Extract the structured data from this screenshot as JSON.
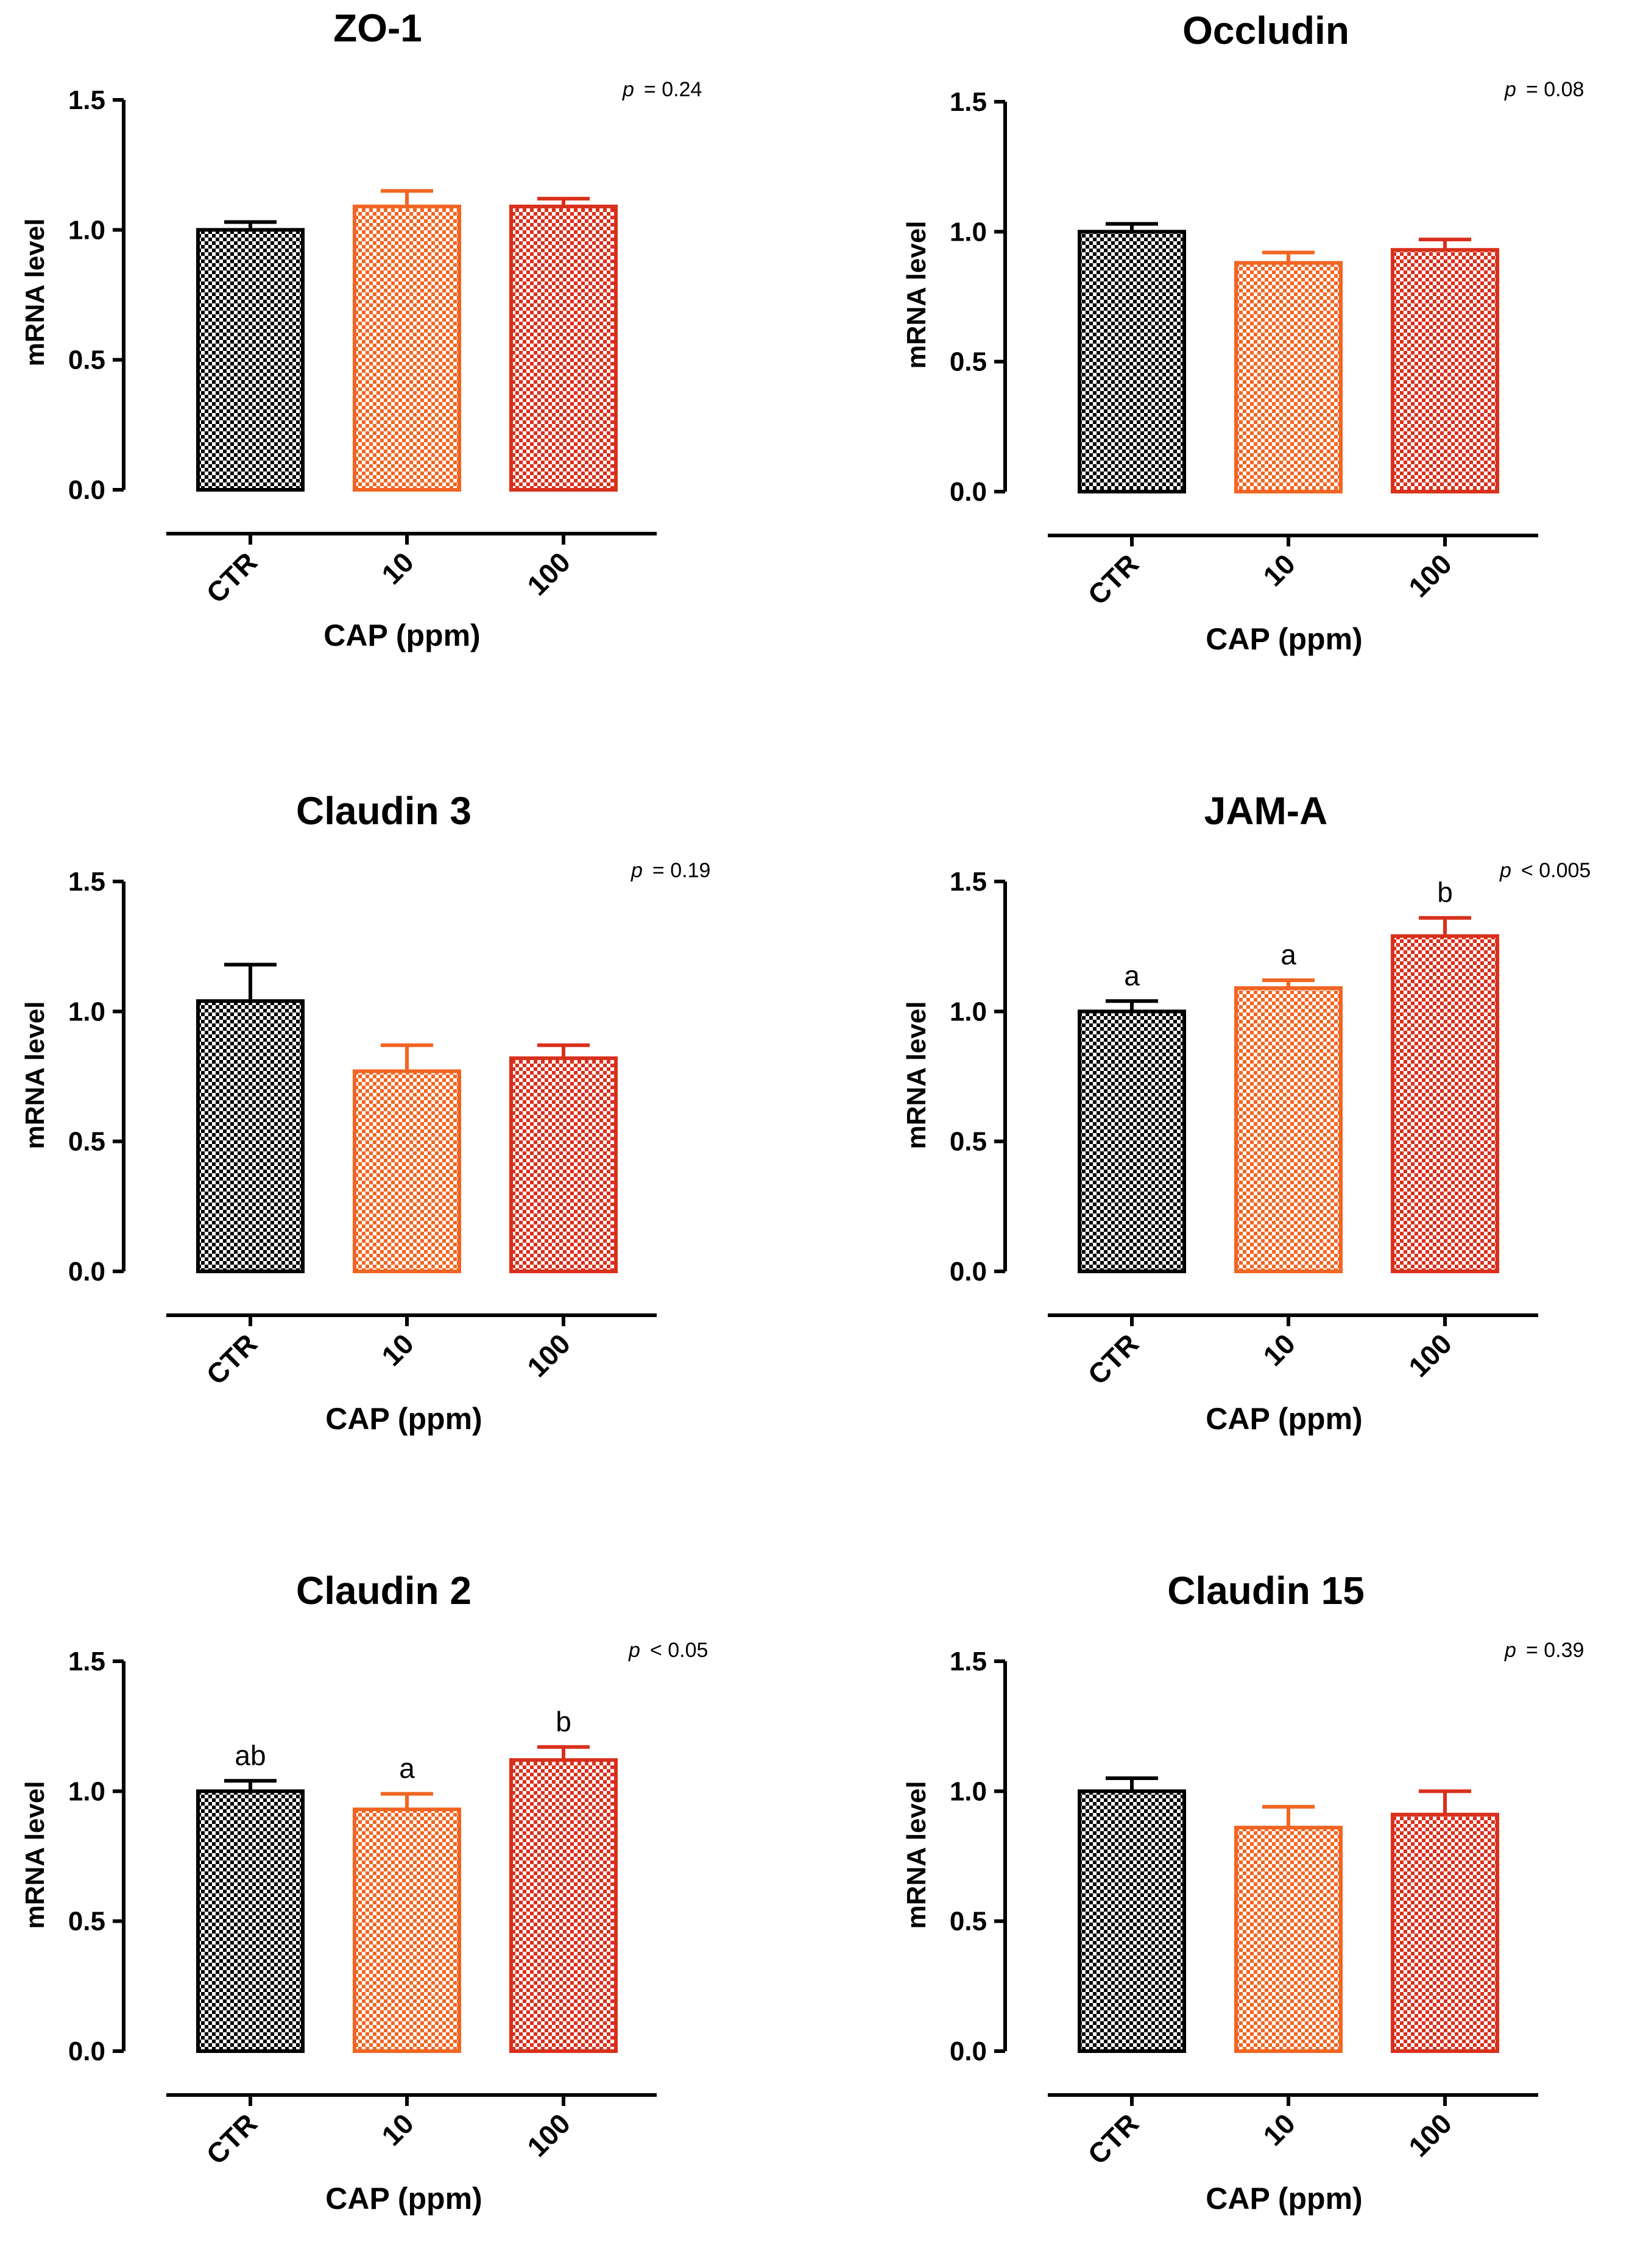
{
  "series_colors": [
    "#000000",
    "#f26522",
    "#d9301c"
  ],
  "chart_data": [
    {
      "type": "bar",
      "title": "ZO-1",
      "categories": [
        "CTR",
        "10",
        "100"
      ],
      "values": [
        1.0,
        1.09,
        1.09
      ],
      "errors": [
        0.03,
        0.06,
        0.03
      ],
      "ylabel": "mRNA level",
      "xlabel": "CAP (ppm)",
      "ylim": [
        0,
        1.5
      ],
      "yticks": [
        "0.0",
        "0.5",
        "1.0",
        "1.5"
      ],
      "p_symbol": "p",
      "p_text": "= 0.24",
      "significance_letters": [
        "",
        "",
        ""
      ]
    },
    {
      "type": "bar",
      "title": "Occludin",
      "categories": [
        "CTR",
        "10",
        "100"
      ],
      "values": [
        1.0,
        0.88,
        0.93
      ],
      "errors": [
        0.03,
        0.04,
        0.04
      ],
      "ylabel": "mRNA level",
      "xlabel": "CAP (ppm)",
      "ylim": [
        0,
        1.5
      ],
      "yticks": [
        "0.0",
        "0.5",
        "1.0",
        "1.5"
      ],
      "p_symbol": "p",
      "p_text": "= 0.08",
      "significance_letters": [
        "",
        "",
        ""
      ]
    },
    {
      "type": "bar",
      "title": "Claudin 3",
      "categories": [
        "CTR",
        "10",
        "100"
      ],
      "values": [
        1.04,
        0.77,
        0.82
      ],
      "errors": [
        0.14,
        0.1,
        0.05
      ],
      "ylabel": "mRNA level",
      "xlabel": "CAP (ppm)",
      "ylim": [
        0,
        1.5
      ],
      "yticks": [
        "0.0",
        "0.5",
        "1.0",
        "1.5"
      ],
      "p_symbol": "p",
      "p_text": "= 0.19",
      "significance_letters": [
        "",
        "",
        ""
      ]
    },
    {
      "type": "bar",
      "title": "JAM-A",
      "categories": [
        "CTR",
        "10",
        "100"
      ],
      "values": [
        1.0,
        1.09,
        1.29
      ],
      "errors": [
        0.04,
        0.03,
        0.07
      ],
      "ylabel": "mRNA level",
      "xlabel": "CAP (ppm)",
      "ylim": [
        0,
        1.5
      ],
      "yticks": [
        "0.0",
        "0.5",
        "1.0",
        "1.5"
      ],
      "p_symbol": "p",
      "p_text": "< 0.005",
      "significance_letters": [
        "a",
        "a",
        "b"
      ]
    },
    {
      "type": "bar",
      "title": "Claudin 2",
      "categories": [
        "CTR",
        "10",
        "100"
      ],
      "values": [
        1.0,
        0.93,
        1.12
      ],
      "errors": [
        0.04,
        0.06,
        0.05
      ],
      "ylabel": "mRNA level",
      "xlabel": "CAP (ppm)",
      "ylim": [
        0,
        1.5
      ],
      "yticks": [
        "0.0",
        "0.5",
        "1.0",
        "1.5"
      ],
      "p_symbol": "p",
      "p_text": "< 0.05",
      "significance_letters": [
        "ab",
        "a",
        "b"
      ]
    },
    {
      "type": "bar",
      "title": "Claudin 15",
      "categories": [
        "CTR",
        "10",
        "100"
      ],
      "values": [
        1.0,
        0.86,
        0.91
      ],
      "errors": [
        0.05,
        0.08,
        0.09
      ],
      "ylabel": "mRNA level",
      "xlabel": "CAP (ppm)",
      "ylim": [
        0,
        1.5
      ],
      "yticks": [
        "0.0",
        "0.5",
        "1.0",
        "1.5"
      ],
      "p_symbol": "p",
      "p_text": "= 0.39",
      "significance_letters": [
        "",
        "",
        ""
      ]
    }
  ]
}
